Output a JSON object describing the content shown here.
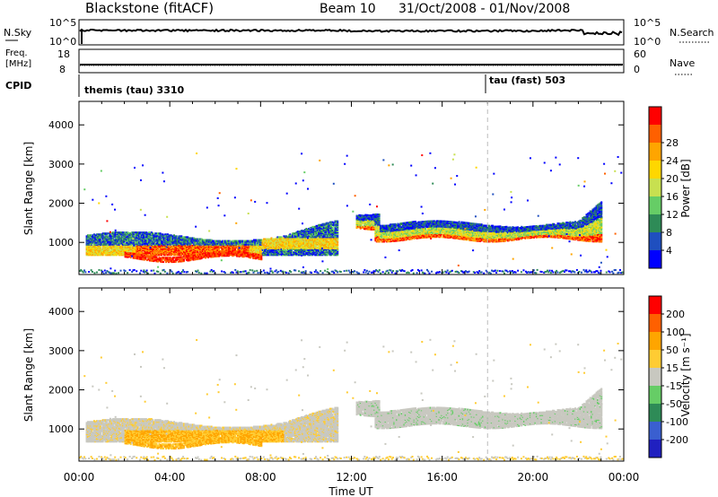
{
  "header": {
    "radar": "Blackstone (fitACF)",
    "beam": "Beam 10",
    "date_range": "31/Oct/2008 - 01/Nov/2008"
  },
  "aux_panels": {
    "nsky_label": "N.Sky",
    "nsky_ticks": [
      "10^5",
      "10^0"
    ],
    "nsearch_label": "N.Search",
    "nsearch_ticks": [
      "10^5",
      "10^0"
    ],
    "freq_label_line1": "Freq.",
    "freq_label_line2": "[MHz]",
    "freq_ticks": [
      "18",
      "8"
    ],
    "nave_label": "Nave",
    "nave_ticks": [
      "60",
      "0"
    ],
    "cpid_label": "CPID",
    "cpid_segments": [
      {
        "name": "themis (tau) 3310",
        "start_hour": 0
      },
      {
        "name": "tau (fast) 503",
        "start_hour": 18.0
      }
    ]
  },
  "colors": {
    "power_scale": [
      "#0000ff",
      "#1f4fbf",
      "#2e8b57",
      "#66cd66",
      "#c8e050",
      "#ffd700",
      "#ffa500",
      "#ff6000",
      "#ff0000"
    ],
    "velocity_scale": [
      "#2020c0",
      "#3a5fd0",
      "#2e8b57",
      "#66cd66",
      "#c8c8c0",
      "#ffcc33",
      "#ffa500",
      "#ff6000",
      "#ff0000"
    ],
    "gray_scatter": "#c8c8c0"
  },
  "chart_data": [
    {
      "type": "heatmap",
      "name": "power",
      "ylabel": "Slant Range [km]",
      "xlabel": "Time UT",
      "colorbar_label": "Power [dB]",
      "colorbar_ticks": [
        "4",
        "8",
        "12",
        "16",
        "20",
        "24",
        "28"
      ],
      "yticks": [
        "1000",
        "2000",
        "3000",
        "4000"
      ],
      "ylim": [
        180,
        4600
      ],
      "xlim_hours": [
        0,
        24
      ],
      "xticks": [
        "00:00",
        "04:00",
        "08:00",
        "12:00",
        "16:00",
        "20:00",
        "00:00"
      ],
      "bands": [
        {
          "t0": 0.3,
          "t1": 11.3,
          "r0": 850,
          "r1": 1300,
          "level": "mixed"
        },
        {
          "t0": 0.3,
          "t1": 8.0,
          "r0": 600,
          "r1": 950,
          "level": "strong"
        },
        {
          "t0": 12.2,
          "t1": 23.0,
          "r0": 1050,
          "r1": 1800,
          "level": "mixed"
        },
        {
          "t0": 0.0,
          "t1": 24.0,
          "r0": 200,
          "r1": 330,
          "level": "weak"
        }
      ]
    },
    {
      "type": "heatmap",
      "name": "velocity",
      "ylabel": "Slant Range [km]",
      "xlabel": "Time UT",
      "colorbar_label": "Velocity [m s⁻¹]",
      "colorbar_ticks": [
        "-200",
        "-100",
        "-50",
        "-15",
        "15",
        "50",
        "100",
        "200"
      ],
      "yticks": [
        "1000",
        "2000",
        "3000",
        "4000"
      ],
      "ylim": [
        180,
        4600
      ],
      "xlim_hours": [
        0,
        24
      ],
      "xticks": [
        "00:00",
        "04:00",
        "08:00",
        "12:00",
        "16:00",
        "20:00",
        "00:00"
      ]
    }
  ]
}
